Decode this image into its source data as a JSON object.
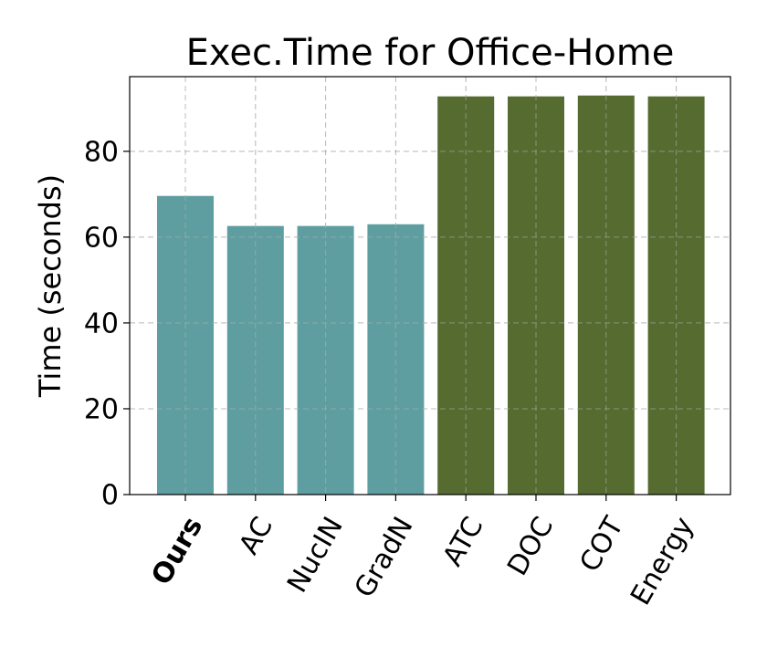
{
  "chart_data": {
    "type": "bar",
    "title": "Exec.Time for Office-Home",
    "y_label": "Time (seconds)",
    "categories": [
      "Ours",
      "AC",
      "NucIN",
      "GradN",
      "ATC",
      "DOC",
      "COT",
      "Energy"
    ],
    "values": [
      69.6,
      62.6,
      62.6,
      63.0,
      92.8,
      92.8,
      93.0,
      92.8
    ],
    "colors": [
      "#5f9ea0",
      "#5f9ea0",
      "#5f9ea0",
      "#5f9ea0",
      "#556b2f",
      "#556b2f",
      "#556b2f",
      "#556b2f"
    ],
    "ylim": [
      0,
      97.4
    ],
    "yticks": [
      0,
      20,
      40,
      60,
      80
    ],
    "grid": true
  }
}
